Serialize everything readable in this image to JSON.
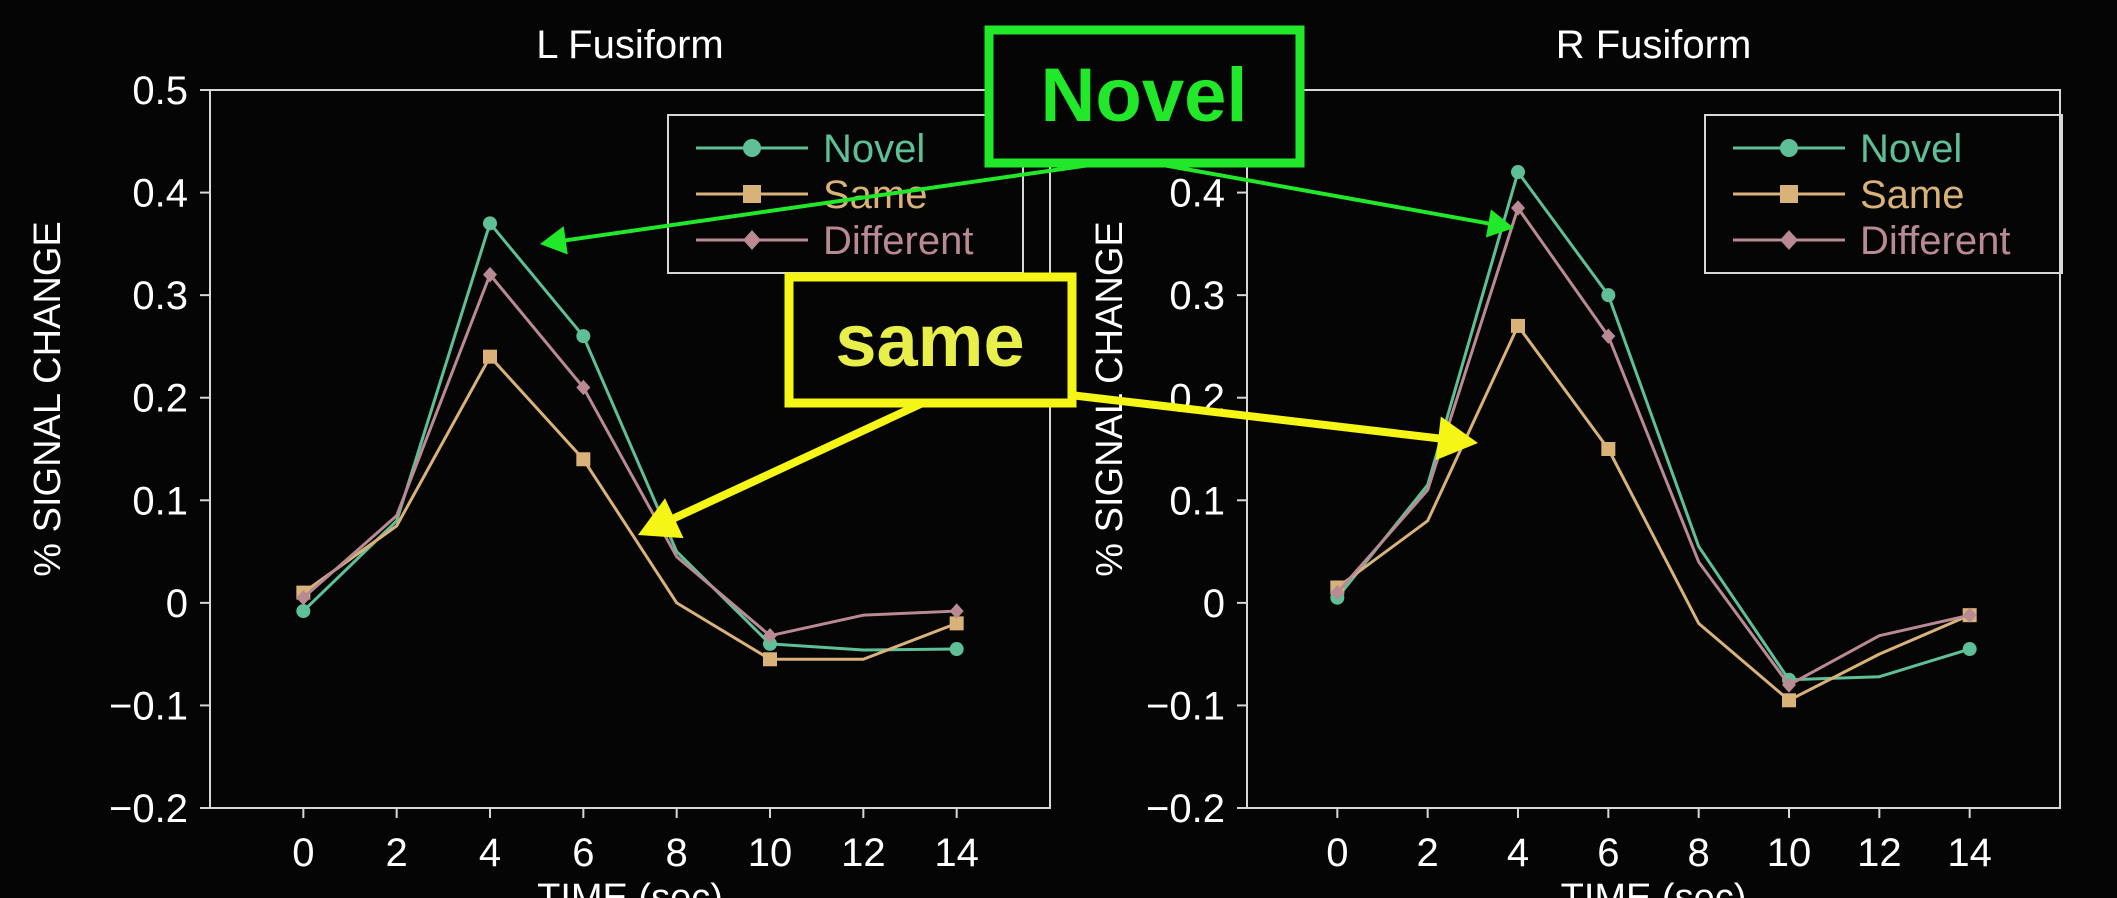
{
  "chart_data": [
    {
      "type": "line",
      "title": "L Fusiform",
      "xlabel": "TIME (sec)",
      "ylabel": "% SIGNAL CHANGE",
      "x": [
        0,
        2,
        4,
        6,
        8,
        10,
        12,
        14
      ],
      "xticks": [
        "0",
        "2",
        "4",
        "6",
        "8",
        "10",
        "12",
        "14"
      ],
      "yticks": [
        "0.5",
        "0.4",
        "0.3",
        "0.2",
        "0.1",
        "0",
        "−0.1",
        "−0.2"
      ],
      "ytick_values": [
        0.5,
        0.4,
        0.3,
        0.2,
        0.1,
        0,
        -0.1,
        -0.2
      ],
      "xlim": [
        -2,
        16
      ],
      "ylim": [
        -0.2,
        0.5
      ],
      "legend_position": "top-right",
      "series": [
        {
          "name": "Novel",
          "color": "#5fbf96",
          "marker": "circle",
          "values": [
            -0.008,
            0.08,
            0.37,
            0.26,
            0.05,
            -0.04,
            -0.046,
            -0.045
          ],
          "show_marker": [
            true,
            false,
            true,
            true,
            false,
            true,
            false,
            true
          ]
        },
        {
          "name": "Same",
          "color": "#d9b27a",
          "marker": "square",
          "values": [
            0.01,
            0.075,
            0.24,
            0.14,
            0.0,
            -0.055,
            -0.055,
            -0.02
          ],
          "show_marker": [
            true,
            false,
            true,
            true,
            false,
            true,
            false,
            true
          ]
        },
        {
          "name": "Different",
          "color": "#b98a93",
          "marker": "diamond",
          "values": [
            0.005,
            0.085,
            0.32,
            0.21,
            0.045,
            -0.032,
            -0.012,
            -0.008
          ],
          "show_marker": [
            true,
            false,
            true,
            true,
            false,
            true,
            false,
            true
          ]
        }
      ]
    },
    {
      "type": "line",
      "title": "R Fusiform",
      "xlabel": "TIME (sec)",
      "ylabel": "% SIGNAL CHANGE",
      "x": [
        0,
        2,
        4,
        6,
        8,
        10,
        12,
        14
      ],
      "xticks": [
        "0",
        "2",
        "4",
        "6",
        "8",
        "10",
        "12",
        "14"
      ],
      "yticks": [
        "0.5",
        "0.4",
        "0.3",
        "0.2",
        "0.1",
        "0",
        "−0.1",
        "−0.2"
      ],
      "ytick_values": [
        0.5,
        0.4,
        0.3,
        0.2,
        0.1,
        0,
        -0.1,
        -0.2
      ],
      "xlim": [
        -2,
        16
      ],
      "ylim": [
        -0.2,
        0.5
      ],
      "legend_position": "top-right",
      "series": [
        {
          "name": "Novel",
          "color": "#5fbf96",
          "marker": "circle",
          "values": [
            0.005,
            0.115,
            0.42,
            0.3,
            0.055,
            -0.075,
            -0.072,
            -0.045
          ],
          "show_marker": [
            true,
            false,
            true,
            true,
            false,
            true,
            false,
            true
          ]
        },
        {
          "name": "Same",
          "color": "#d9b27a",
          "marker": "square",
          "values": [
            0.015,
            0.08,
            0.27,
            0.15,
            -0.02,
            -0.095,
            -0.05,
            -0.012
          ],
          "show_marker": [
            true,
            false,
            true,
            true,
            false,
            true,
            false,
            true
          ]
        },
        {
          "name": "Different",
          "color": "#b98a93",
          "marker": "diamond",
          "values": [
            0.01,
            0.11,
            0.385,
            0.26,
            0.04,
            -0.08,
            -0.032,
            -0.012
          ],
          "show_marker": [
            true,
            false,
            true,
            true,
            false,
            true,
            false,
            true
          ]
        }
      ]
    }
  ],
  "annotations": {
    "novel": {
      "text": "Novel",
      "color": "#22e82a"
    },
    "same": {
      "text": "same",
      "color": "#f5f516",
      "text_color": "#e9ef4a"
    }
  }
}
